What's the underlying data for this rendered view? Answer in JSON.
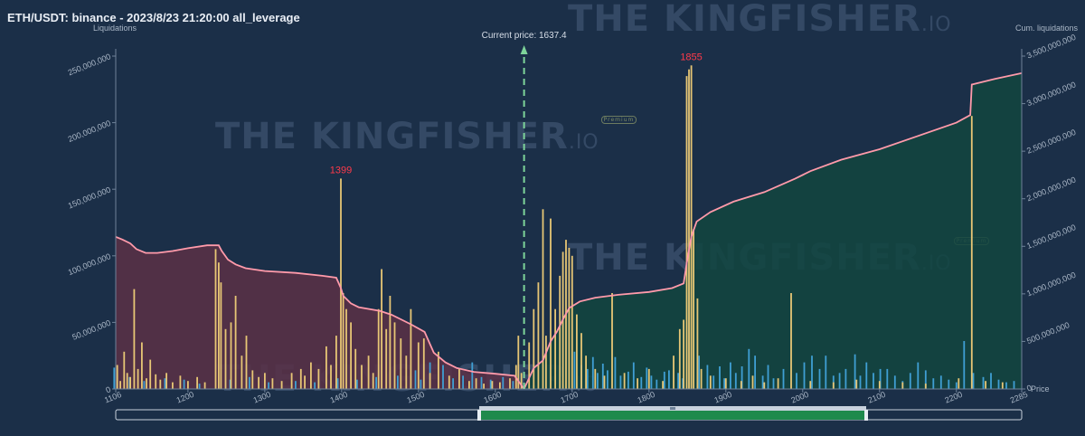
{
  "title": "ETH/USDT: binance - 2023/8/23 21:20:00 all_leverage",
  "watermark": {
    "text": "THE KINGFISHER",
    "suffix": ".IO",
    "badge": "Premium"
  },
  "colors": {
    "background": "#1b2f48",
    "short_side_fill": "#5a3046",
    "long_side_fill": "#12453f",
    "cum_line": "#ff9aaa",
    "bar_yellow": "#e7c675",
    "bar_blue": "#3f9fd4",
    "current_price_line": "#7ed49a",
    "peak_label": "#ff3a4a",
    "axis_text": "#a9b6c6"
  },
  "chart_data": {
    "type": "bar",
    "title": "ETH/USDT: binance - 2023/8/23 21:20:00 all_leverage",
    "xlabel": "Price",
    "ylabel": "Liquidations",
    "ylabel_right": "Cum. liquidations",
    "xlim": [
      1106,
      2285
    ],
    "ylim": [
      0,
      250000000
    ],
    "ylim_right": [
      0,
      3500000000
    ],
    "x_ticks": [
      1106,
      1200,
      1300,
      1400,
      1500,
      1600,
      1700,
      1800,
      1900,
      2000,
      2100,
      2200,
      2285
    ],
    "y_ticks": [
      0,
      50000000,
      100000000,
      150000000,
      200000000,
      250000000
    ],
    "y_tick_labels": [
      "0",
      "50,000,000",
      "100,000,000",
      "150,000,000",
      "200,000,000",
      "250,000,000"
    ],
    "y_right_ticks": [
      0,
      500000000,
      1000000000,
      1500000000,
      2000000000,
      2500000000,
      3000000000,
      3500000000
    ],
    "y_right_tick_labels": [
      "0",
      "500,000,000",
      "1,000,000,000",
      "1,500,000,000",
      "2,000,000,000",
      "2,500,000,000",
      "3,000,000,000",
      "3,500,000,000"
    ],
    "current_price": 1637.4,
    "current_price_label": "Current price: 1637.4",
    "peak_labels": [
      {
        "x": 1399,
        "y": 158000000,
        "text": "1399"
      },
      {
        "x": 1855,
        "y": 243000000,
        "text": "1855"
      }
    ],
    "grid": false,
    "bars_yellow": [
      [
        1108,
        18000000
      ],
      [
        1112,
        6000000
      ],
      [
        1117,
        28000000
      ],
      [
        1121,
        12000000
      ],
      [
        1125,
        9000000
      ],
      [
        1130,
        75000000
      ],
      [
        1135,
        15000000
      ],
      [
        1140,
        35000000
      ],
      [
        1146,
        8000000
      ],
      [
        1151,
        22000000
      ],
      [
        1158,
        11000000
      ],
      [
        1164,
        7000000
      ],
      [
        1172,
        12000000
      ],
      [
        1180,
        5000000
      ],
      [
        1190,
        10000000
      ],
      [
        1200,
        6000000
      ],
      [
        1212,
        9000000
      ],
      [
        1222,
        5000000
      ],
      [
        1236,
        105000000
      ],
      [
        1240,
        95000000
      ],
      [
        1243,
        80000000
      ],
      [
        1249,
        45000000
      ],
      [
        1256,
        50000000
      ],
      [
        1262,
        70000000
      ],
      [
        1270,
        25000000
      ],
      [
        1276,
        40000000
      ],
      [
        1284,
        14000000
      ],
      [
        1292,
        9000000
      ],
      [
        1300,
        12000000
      ],
      [
        1310,
        8000000
      ],
      [
        1322,
        6000000
      ],
      [
        1335,
        12000000
      ],
      [
        1347,
        15000000
      ],
      [
        1352,
        10000000
      ],
      [
        1360,
        20000000
      ],
      [
        1370,
        15000000
      ],
      [
        1380,
        32000000
      ],
      [
        1386,
        18000000
      ],
      [
        1393,
        40000000
      ],
      [
        1399,
        158000000
      ],
      [
        1402,
        72000000
      ],
      [
        1406,
        60000000
      ],
      [
        1412,
        50000000
      ],
      [
        1418,
        30000000
      ],
      [
        1426,
        18000000
      ],
      [
        1435,
        25000000
      ],
      [
        1441,
        12000000
      ],
      [
        1448,
        60000000
      ],
      [
        1452,
        90000000
      ],
      [
        1458,
        45000000
      ],
      [
        1463,
        70000000
      ],
      [
        1469,
        50000000
      ],
      [
        1477,
        38000000
      ],
      [
        1484,
        25000000
      ],
      [
        1490,
        60000000
      ],
      [
        1500,
        35000000
      ],
      [
        1507,
        38000000
      ],
      [
        1515,
        12000000
      ],
      [
        1526,
        28000000
      ],
      [
        1540,
        10000000
      ],
      [
        1553,
        15000000
      ],
      [
        1566,
        6000000
      ],
      [
        1575,
        8000000
      ],
      [
        1585,
        4000000
      ],
      [
        1596,
        6000000
      ],
      [
        1606,
        5000000
      ],
      [
        1619,
        8000000
      ],
      [
        1627,
        18000000
      ],
      [
        1630,
        40000000
      ],
      [
        1634,
        12000000
      ],
      [
        1644,
        35000000
      ],
      [
        1650,
        60000000
      ],
      [
        1656,
        80000000
      ],
      [
        1662,
        135000000
      ],
      [
        1666,
        40000000
      ],
      [
        1672,
        128000000
      ],
      [
        1678,
        60000000
      ],
      [
        1684,
        85000000
      ],
      [
        1688,
        103000000
      ],
      [
        1692,
        112000000
      ],
      [
        1696,
        106000000
      ],
      [
        1700,
        100000000
      ],
      [
        1706,
        56000000
      ],
      [
        1712,
        42000000
      ],
      [
        1718,
        25000000
      ],
      [
        1730,
        15000000
      ],
      [
        1742,
        10000000
      ],
      [
        1752,
        72000000
      ],
      [
        1768,
        12000000
      ],
      [
        1785,
        8000000
      ],
      [
        1800,
        15000000
      ],
      [
        1818,
        6000000
      ],
      [
        1832,
        25000000
      ],
      [
        1840,
        45000000
      ],
      [
        1845,
        52000000
      ],
      [
        1849,
        235000000
      ],
      [
        1852,
        240000000
      ],
      [
        1855,
        243000000
      ],
      [
        1858,
        120000000
      ],
      [
        1863,
        68000000
      ],
      [
        1868,
        15000000
      ],
      [
        1880,
        10000000
      ],
      [
        1900,
        8000000
      ],
      [
        1920,
        6000000
      ],
      [
        1935,
        10000000
      ],
      [
        1950,
        5000000
      ],
      [
        1968,
        8000000
      ],
      [
        1985,
        72000000
      ],
      [
        2010,
        6000000
      ],
      [
        2040,
        5000000
      ],
      [
        2070,
        7000000
      ],
      [
        2100,
        6000000
      ],
      [
        2130,
        5000000
      ],
      [
        2160,
        4000000
      ],
      [
        2203,
        8000000
      ],
      [
        2220,
        205000000
      ],
      [
        2238,
        6000000
      ],
      [
        2260,
        5000000
      ]
    ],
    "bars_blue": [
      [
        1104,
        16000000
      ],
      [
        1124,
        9000000
      ],
      [
        1143,
        6000000
      ],
      [
        1170,
        8000000
      ],
      [
        1195,
        7000000
      ],
      [
        1215,
        4000000
      ],
      [
        1255,
        7000000
      ],
      [
        1280,
        9000000
      ],
      [
        1305,
        5000000
      ],
      [
        1340,
        6000000
      ],
      [
        1365,
        5000000
      ],
      [
        1395,
        8000000
      ],
      [
        1420,
        7000000
      ],
      [
        1445,
        9000000
      ],
      [
        1473,
        10000000
      ],
      [
        1496,
        14000000
      ],
      [
        1503,
        7000000
      ],
      [
        1515,
        20000000
      ],
      [
        1532,
        18000000
      ],
      [
        1545,
        8000000
      ],
      [
        1558,
        10000000
      ],
      [
        1570,
        20000000
      ],
      [
        1582,
        9000000
      ],
      [
        1594,
        7000000
      ],
      [
        1610,
        9000000
      ],
      [
        1623,
        6000000
      ],
      [
        1703,
        28000000
      ],
      [
        1712,
        18000000
      ],
      [
        1720,
        15000000
      ],
      [
        1727,
        24000000
      ],
      [
        1733,
        12000000
      ],
      [
        1740,
        19000000
      ],
      [
        1746,
        14000000
      ],
      [
        1756,
        24000000
      ],
      [
        1763,
        10000000
      ],
      [
        1773,
        13000000
      ],
      [
        1780,
        20000000
      ],
      [
        1790,
        9000000
      ],
      [
        1797,
        16000000
      ],
      [
        1803,
        10000000
      ],
      [
        1810,
        7000000
      ],
      [
        1820,
        13000000
      ],
      [
        1826,
        14000000
      ],
      [
        1838,
        12000000
      ],
      [
        1844,
        8000000
      ],
      [
        1865,
        25000000
      ],
      [
        1876,
        18000000
      ],
      [
        1884,
        10000000
      ],
      [
        1892,
        17000000
      ],
      [
        1898,
        8000000
      ],
      [
        1906,
        20000000
      ],
      [
        1913,
        12000000
      ],
      [
        1921,
        17000000
      ],
      [
        1930,
        30000000
      ],
      [
        1938,
        25000000
      ],
      [
        1948,
        10000000
      ],
      [
        1955,
        18000000
      ],
      [
        1962,
        8000000
      ],
      [
        1975,
        15000000
      ],
      [
        1992,
        12000000
      ],
      [
        2002,
        20000000
      ],
      [
        2012,
        25000000
      ],
      [
        2022,
        15000000
      ],
      [
        2030,
        25000000
      ],
      [
        2040,
        10000000
      ],
      [
        2048,
        12000000
      ],
      [
        2056,
        15000000
      ],
      [
        2068,
        26000000
      ],
      [
        2075,
        10000000
      ],
      [
        2083,
        20000000
      ],
      [
        2092,
        12000000
      ],
      [
        2101,
        15000000
      ],
      [
        2110,
        15000000
      ],
      [
        2120,
        10000000
      ],
      [
        2130,
        6000000
      ],
      [
        2140,
        12000000
      ],
      [
        2150,
        20000000
      ],
      [
        2160,
        14000000
      ],
      [
        2170,
        8000000
      ],
      [
        2180,
        10000000
      ],
      [
        2190,
        7000000
      ],
      [
        2200,
        5000000
      ],
      [
        2210,
        36000000
      ],
      [
        2222,
        12000000
      ],
      [
        2235,
        9000000
      ],
      [
        2245,
        12000000
      ],
      [
        2255,
        7000000
      ],
      [
        2265,
        5000000
      ],
      [
        2275,
        6000000
      ]
    ],
    "cum_short": [
      [
        1106,
        1600000000
      ],
      [
        1115,
        1570000000
      ],
      [
        1125,
        1530000000
      ],
      [
        1133,
        1470000000
      ],
      [
        1145,
        1430000000
      ],
      [
        1160,
        1430000000
      ],
      [
        1180,
        1450000000
      ],
      [
        1200,
        1480000000
      ],
      [
        1225,
        1510000000
      ],
      [
        1240,
        1510000000
      ],
      [
        1244,
        1450000000
      ],
      [
        1252,
        1360000000
      ],
      [
        1262,
        1310000000
      ],
      [
        1275,
        1270000000
      ],
      [
        1300,
        1240000000
      ],
      [
        1340,
        1220000000
      ],
      [
        1375,
        1190000000
      ],
      [
        1393,
        1170000000
      ],
      [
        1399,
        1060000000
      ],
      [
        1402,
        980000000
      ],
      [
        1412,
        900000000
      ],
      [
        1422,
        860000000
      ],
      [
        1450,
        820000000
      ],
      [
        1465,
        780000000
      ],
      [
        1490,
        680000000
      ],
      [
        1508,
        600000000
      ],
      [
        1520,
        380000000
      ],
      [
        1535,
        280000000
      ],
      [
        1550,
        220000000
      ],
      [
        1572,
        180000000
      ],
      [
        1600,
        160000000
      ],
      [
        1625,
        140000000
      ],
      [
        1637.4,
        0
      ]
    ],
    "cum_long": [
      [
        1637.4,
        0
      ],
      [
        1650,
        220000000
      ],
      [
        1662,
        300000000
      ],
      [
        1672,
        500000000
      ],
      [
        1680,
        600000000
      ],
      [
        1688,
        730000000
      ],
      [
        1696,
        850000000
      ],
      [
        1710,
        920000000
      ],
      [
        1730,
        960000000
      ],
      [
        1760,
        990000000
      ],
      [
        1800,
        1020000000
      ],
      [
        1830,
        1060000000
      ],
      [
        1845,
        1110000000
      ],
      [
        1849,
        1320000000
      ],
      [
        1855,
        1600000000
      ],
      [
        1862,
        1760000000
      ],
      [
        1880,
        1860000000
      ],
      [
        1910,
        1970000000
      ],
      [
        1950,
        2070000000
      ],
      [
        1990,
        2210000000
      ],
      [
        2010,
        2290000000
      ],
      [
        2050,
        2410000000
      ],
      [
        2100,
        2520000000
      ],
      [
        2150,
        2660000000
      ],
      [
        2200,
        2800000000
      ],
      [
        2218,
        2880000000
      ],
      [
        2220,
        3200000000
      ],
      [
        2250,
        3260000000
      ],
      [
        2285,
        3320000000
      ]
    ]
  }
}
